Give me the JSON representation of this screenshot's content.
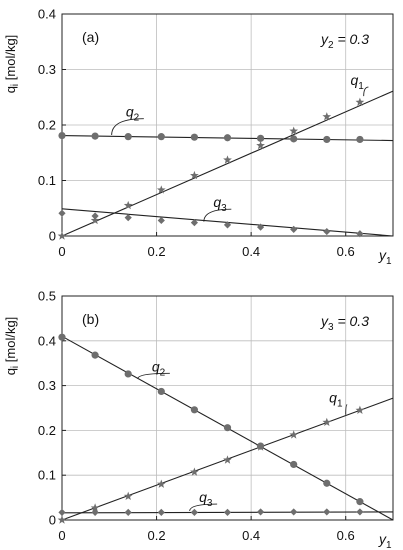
{
  "chart_data": [
    {
      "type": "line",
      "panel_label": "(a)",
      "condition": {
        "var": "y",
        "sub": "2",
        "text": "= 0.3"
      },
      "ylabel_main": "q",
      "ylabel_sub": "i",
      "ylabel_unit": " [mol/kg]",
      "xlabel_main": "y",
      "xlabel_sub": "1",
      "xlim": [
        0,
        0.7
      ],
      "ylim": [
        0,
        0.4
      ],
      "xticks": [
        0,
        0.2,
        0.4,
        0.6
      ],
      "xtick_labels": [
        "0",
        "0.2",
        "0.4",
        "0.6"
      ],
      "yticks": [
        0,
        0.1,
        0.2,
        0.3,
        0.4
      ],
      "ytick_labels": [
        "0",
        "0.1",
        "0.2",
        "0.3",
        "0.4"
      ],
      "grid": true,
      "series": [
        {
          "name": "q",
          "sub": "1",
          "marker": "star",
          "x": [
            0,
            0.07,
            0.14,
            0.21,
            0.28,
            0.35,
            0.42,
            0.49,
            0.56,
            0.63
          ],
          "y": [
            0,
            0.028,
            0.055,
            0.083,
            0.109,
            0.137,
            0.163,
            0.189,
            0.215,
            0.241
          ],
          "fit": [
            [
              0,
              0
            ],
            [
              0.7,
              0.261
            ]
          ],
          "label_pos": [
            0.61,
            0.272
          ],
          "leader_to": [
            0.638,
            0.252
          ]
        },
        {
          "name": "q",
          "sub": "2",
          "marker": "circle",
          "x": [
            0,
            0.07,
            0.14,
            0.21,
            0.28,
            0.35,
            0.42,
            0.49,
            0.56,
            0.63
          ],
          "y": [
            0.181,
            0.18,
            0.179,
            0.179,
            0.178,
            0.177,
            0.176,
            0.175,
            0.174,
            0.174
          ],
          "fit": [
            [
              0,
              0.181
            ],
            [
              0.7,
              0.172
            ]
          ],
          "label_pos": [
            0.135,
            0.215
          ],
          "leader_to": [
            0.105,
            0.182
          ]
        },
        {
          "name": "q",
          "sub": "3",
          "marker": "diamond",
          "x": [
            0,
            0.07,
            0.14,
            0.21,
            0.28,
            0.35,
            0.42,
            0.49,
            0.56,
            0.63
          ],
          "y": [
            0.041,
            0.036,
            0.033,
            0.028,
            0.024,
            0.02,
            0.016,
            0.012,
            0.008,
            0.004
          ],
          "fit": [
            [
              0,
              0.049
            ],
            [
              0.7,
              0.0
            ]
          ],
          "label_pos": [
            0.32,
            0.052
          ],
          "leader_to": [
            0.3,
            0.026
          ]
        }
      ]
    },
    {
      "type": "line",
      "panel_label": "(b)",
      "condition": {
        "var": "y",
        "sub": "3",
        "text": "= 0.3"
      },
      "ylabel_main": "q",
      "ylabel_sub": "i",
      "ylabel_unit": " [mol/kg]",
      "xlabel_main": "y",
      "xlabel_sub": "1",
      "xlim": [
        0,
        0.7
      ],
      "ylim": [
        0,
        0.5
      ],
      "xticks": [
        0,
        0.2,
        0.4,
        0.6
      ],
      "xtick_labels": [
        "0",
        "0.2",
        "0.4",
        "0.6"
      ],
      "yticks": [
        0,
        0.1,
        0.2,
        0.3,
        0.4,
        0.5
      ],
      "ytick_labels": [
        "0",
        "0.1",
        "0.2",
        "0.3",
        "0.4",
        "0.5"
      ],
      "grid": true,
      "series": [
        {
          "name": "q",
          "sub": "1",
          "marker": "star",
          "x": [
            0,
            0.07,
            0.14,
            0.21,
            0.28,
            0.35,
            0.42,
            0.49,
            0.56,
            0.63
          ],
          "y": [
            0,
            0.027,
            0.053,
            0.08,
            0.107,
            0.134,
            0.163,
            0.19,
            0.218,
            0.245
          ],
          "fit": [
            [
              0,
              0
            ],
            [
              0.7,
              0.272
            ]
          ],
          "label_pos": [
            0.565,
            0.262
          ],
          "leader_to": [
            0.6,
            0.235
          ]
        },
        {
          "name": "q",
          "sub": "2",
          "marker": "circle",
          "x": [
            0,
            0.07,
            0.14,
            0.21,
            0.28,
            0.35,
            0.42,
            0.49,
            0.56,
            0.63
          ],
          "y": [
            0.408,
            0.368,
            0.326,
            0.287,
            0.246,
            0.206,
            0.165,
            0.124,
            0.082,
            0.041
          ],
          "fit": [
            [
              0,
              0.41
            ],
            [
              0.7,
              0.0
            ]
          ],
          "label_pos": [
            0.19,
            0.332
          ],
          "leader_to": [
            0.16,
            0.315
          ]
        },
        {
          "name": "q",
          "sub": "3",
          "marker": "diamond",
          "x": [
            0,
            0.07,
            0.14,
            0.21,
            0.28,
            0.35,
            0.42,
            0.49,
            0.56,
            0.63
          ],
          "y": [
            0.017,
            0.017,
            0.017,
            0.017,
            0.017,
            0.017,
            0.018,
            0.018,
            0.018,
            0.018
          ],
          "fit": [
            [
              0,
              0.016
            ],
            [
              0.7,
              0.018
            ]
          ],
          "label_pos": [
            0.29,
            0.04
          ],
          "leader_to": [
            0.27,
            0.02
          ]
        }
      ]
    }
  ]
}
